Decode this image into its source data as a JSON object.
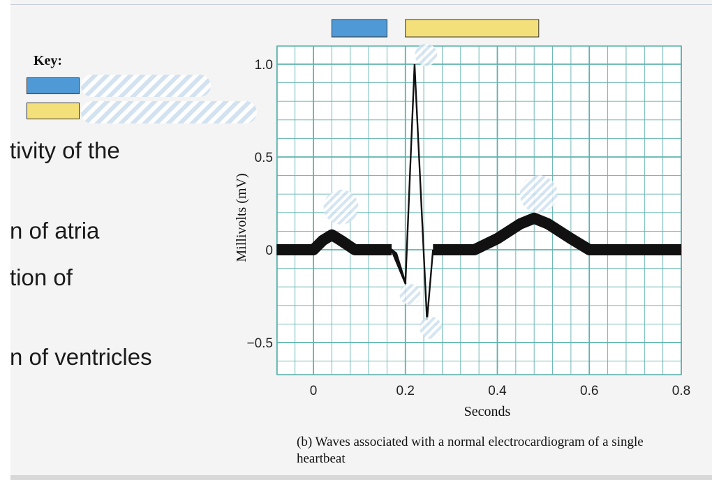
{
  "key": {
    "title": "Key:",
    "items": [
      {
        "color": "#4f9ad6",
        "label": ""
      },
      {
        "color": "#f4e07a",
        "label": ""
      }
    ]
  },
  "left_text": [
    "tivity of the",
    "n of atria",
    "tion of",
    "n of ventricles"
  ],
  "caption": "(b) Waves associated with a normal electrocardiogram of a single heartbeat",
  "chart_data": {
    "type": "line",
    "title": "",
    "xlabel": "Seconds",
    "ylabel": "Millivolts (mV)",
    "xlim": [
      -0.08,
      0.8
    ],
    "ylim": [
      -0.7,
      1.1
    ],
    "xticks": [
      0,
      0.2,
      0.4,
      0.6,
      0.8
    ],
    "xtick_labels": [
      "0",
      "0.2",
      "0.4",
      "0.6",
      "0.8"
    ],
    "yticks": [
      1.0,
      0.5,
      0,
      -0.5
    ],
    "ytick_labels": [
      "1.0",
      "0.5",
      "0",
      "−0.5"
    ],
    "grid": true,
    "timing_bars": [
      {
        "color": "#4f9ad6",
        "x_start": 0.04,
        "x_end": 0.16
      },
      {
        "color": "#f4e07a",
        "x_start": 0.2,
        "x_end": 0.49
      }
    ],
    "series": [
      {
        "thick_segments": [
          [
            [
              -0.08,
              0
            ],
            [
              0.0,
              0
            ],
            [
              0.02,
              0.05
            ],
            [
              0.04,
              0.08
            ],
            [
              0.06,
              0.05
            ],
            [
              0.09,
              0
            ],
            [
              0.17,
              0
            ]
          ],
          [
            [
              0.26,
              0
            ],
            [
              0.35,
              0
            ],
            [
              0.4,
              0.06
            ],
            [
              0.45,
              0.14
            ],
            [
              0.48,
              0.17
            ],
            [
              0.51,
              0.14
            ],
            [
              0.56,
              0.06
            ],
            [
              0.6,
              0
            ],
            [
              0.8,
              0
            ]
          ]
        ],
        "q_wedge": [
          [
            0.17,
            0
          ],
          [
            0.2,
            -0.18
          ],
          [
            0.18,
            -0.02
          ]
        ],
        "thin_segment": [
          [
            0.17,
            0
          ],
          [
            0.2,
            -0.18
          ],
          [
            0.22,
            1.0
          ],
          [
            0.247,
            -0.38
          ],
          [
            0.26,
            0
          ]
        ]
      }
    ],
    "wave_markers": [
      {
        "x": 0.06,
        "y": 0.23
      },
      {
        "x": 0.245,
        "y": 1.05
      },
      {
        "x": 0.21,
        "y": -0.24
      },
      {
        "x": 0.255,
        "y": -0.42
      },
      {
        "x": 0.49,
        "y": 0.3
      }
    ]
  }
}
